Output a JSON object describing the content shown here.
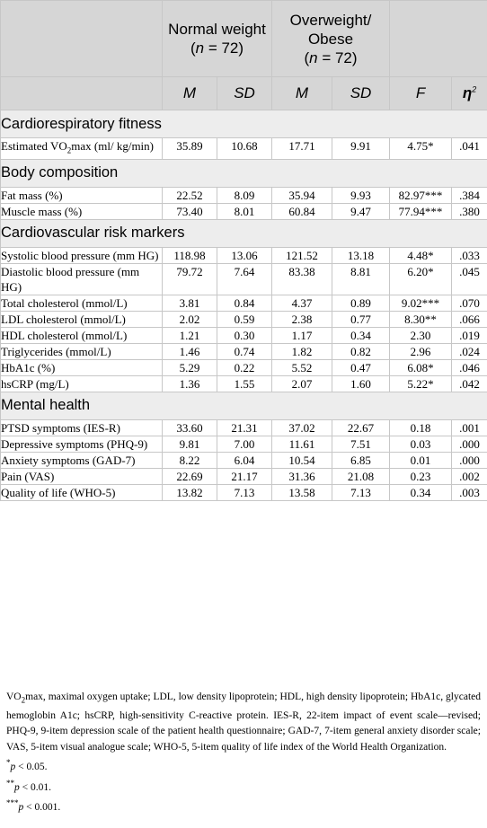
{
  "header": {
    "group1": "Normal weight",
    "group1_n": "(n = 72)",
    "group2": "Overweight/ Obese",
    "group2_n": "(n = 72)",
    "col_M": "M",
    "col_SD": "SD",
    "col_F": "F",
    "col_eta": "η",
    "col_eta_sup": "2"
  },
  "sections": [
    {
      "title": "Cardiorespiratory fitness",
      "rows": [
        {
          "label": "Estimated VO₂max (ml/ kg/min)",
          "nw_m": "35.89",
          "nw_sd": "10.68",
          "ob_m": "17.71",
          "ob_sd": "9.91",
          "f": "4.75*",
          "eta": ".041"
        }
      ]
    },
    {
      "title": "Body composition",
      "rows": [
        {
          "label": "Fat mass (%)",
          "nw_m": "22.52",
          "nw_sd": "8.09",
          "ob_m": "35.94",
          "ob_sd": "9.93",
          "f": "82.97***",
          "eta": ".384"
        },
        {
          "label": "Muscle mass (%)",
          "nw_m": "73.40",
          "nw_sd": "8.01",
          "ob_m": "60.84",
          "ob_sd": "9.47",
          "f": "77.94***",
          "eta": ".380"
        }
      ]
    },
    {
      "title": "Cardiovascular risk markers",
      "rows": [
        {
          "label": "Systolic blood pressure (mm HG)",
          "nw_m": "118.98",
          "nw_sd": "13.06",
          "ob_m": "121.52",
          "ob_sd": "13.18",
          "f": "4.48*",
          "eta": ".033"
        },
        {
          "label": "Diastolic blood pressure (mm HG)",
          "nw_m": "79.72",
          "nw_sd": "7.64",
          "ob_m": "83.38",
          "ob_sd": "8.81",
          "f": "6.20*",
          "eta": ".045"
        },
        {
          "label": "Total cholesterol (mmol/L)",
          "nw_m": "3.81",
          "nw_sd": "0.84",
          "ob_m": "4.37",
          "ob_sd": "0.89",
          "f": "9.02***",
          "eta": ".070"
        },
        {
          "label": "LDL cholesterol (mmol/L)",
          "nw_m": "2.02",
          "nw_sd": "0.59",
          "ob_m": "2.38",
          "ob_sd": "0.77",
          "f": "8.30**",
          "eta": ".066"
        },
        {
          "label": "HDL cholesterol (mmol/L)",
          "nw_m": "1.21",
          "nw_sd": "0.30",
          "ob_m": "1.17",
          "ob_sd": "0.34",
          "f": "2.30",
          "eta": ".019"
        },
        {
          "label": "Triglycerides (mmol/L)",
          "nw_m": "1.46",
          "nw_sd": "0.74",
          "ob_m": "1.82",
          "ob_sd": "0.82",
          "f": "2.96",
          "eta": ".024"
        },
        {
          "label": "HbA1c (%)",
          "nw_m": "5.29",
          "nw_sd": "0.22",
          "ob_m": "5.52",
          "ob_sd": "0.47",
          "f": "6.08*",
          "eta": ".046"
        },
        {
          "label": "hsCRP (mg/L)",
          "nw_m": "1.36",
          "nw_sd": "1.55",
          "ob_m": "2.07",
          "ob_sd": "1.60",
          "f": "5.22*",
          "eta": ".042"
        }
      ]
    },
    {
      "title": "Mental health",
      "rows": [
        {
          "label": "PTSD symptoms (IES-R)",
          "nw_m": "33.60",
          "nw_sd": "21.31",
          "ob_m": "37.02",
          "ob_sd": "22.67",
          "f": "0.18",
          "eta": ".001"
        },
        {
          "label": "Depressive symptoms (PHQ-9)",
          "nw_m": "9.81",
          "nw_sd": "7.00",
          "ob_m": "11.61",
          "ob_sd": "7.51",
          "f": "0.03",
          "eta": ".000"
        },
        {
          "label": "Anxiety symptoms (GAD-7)",
          "nw_m": "8.22",
          "nw_sd": "6.04",
          "ob_m": "10.54",
          "ob_sd": "6.85",
          "f": "0.01",
          "eta": ".000"
        },
        {
          "label": "Pain (VAS)",
          "nw_m": "22.69",
          "nw_sd": "21.17",
          "ob_m": "31.36",
          "ob_sd": "21.08",
          "f": "0.23",
          "eta": ".002"
        },
        {
          "label": "Quality of life (WHO-5)",
          "nw_m": "13.82",
          "nw_sd": "7.13",
          "ob_m": "13.58",
          "ob_sd": "7.13",
          "f": "0.34",
          "eta": ".003"
        }
      ]
    }
  ],
  "footnote": {
    "abbreviations": "VO₂max, maximal oxygen uptake; LDL, low density lipoprotein; HDL, high density lipoprotein; HbA1c, glycated hemoglobin A1c; hsCRP, high-sensitivity C-reactive protein. IES-R, 22-item impact of event scale—revised; PHQ-9, 9-item depression scale of the patient health questionnaire; GAD-7, 7-item general anxiety disorder scale; VAS, 5-item visual analogue scale; WHO-5, 5-item quality of life index of the World Health Organization.",
    "sig1": "*p < 0.05.",
    "sig2": "**p < 0.01.",
    "sig3": "***p < 0.001."
  }
}
